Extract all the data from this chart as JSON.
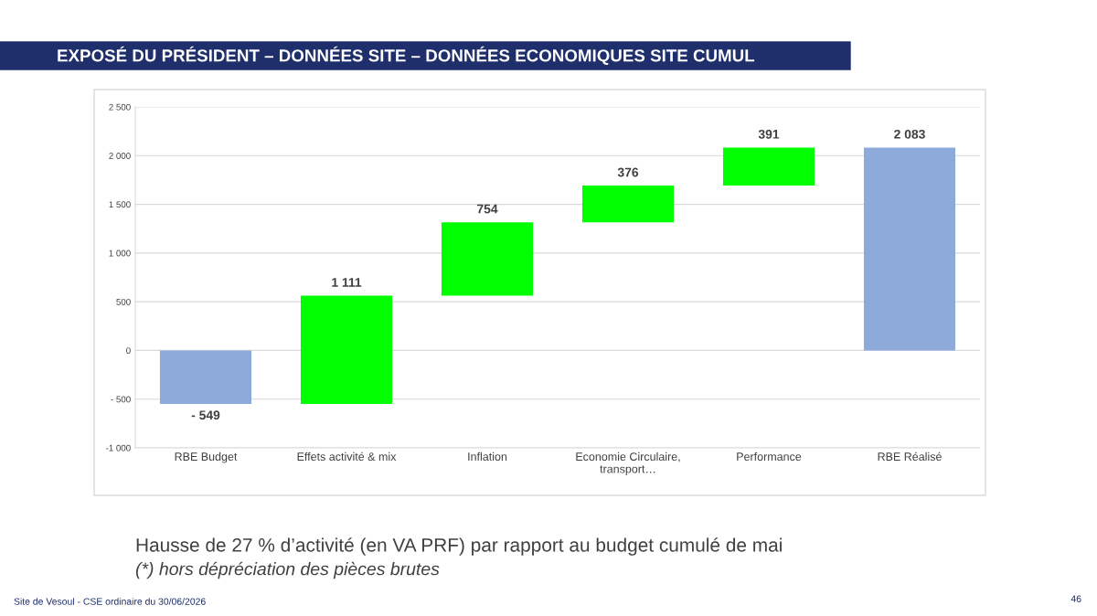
{
  "chart_data": {
    "type": "bar",
    "title": "EXPOSÉ DU PRÉSIDENT – DONNÉES SITE – DONNÉES ECONOMIQUES SITE CUMUL",
    "categories": [
      "RBE Budget",
      "Effets activité & mix",
      "Inflation",
      "Economie Circulaire,\ntransport…",
      "Performance",
      "RBE Réalisé"
    ],
    "values": [
      -549,
      1111,
      754,
      376,
      391,
      2083
    ],
    "base": [
      0,
      -549,
      562,
      1316,
      1692,
      0
    ],
    "colors": [
      "#8eaadb",
      "#00ff00",
      "#00ff00",
      "#00ff00",
      "#00ff00",
      "#8eaadb"
    ],
    "value_labels": [
      "- 549",
      "1 111",
      "754",
      "376",
      "391",
      "2 083"
    ],
    "ylim": [
      -1000,
      2500
    ],
    "yticks": [
      {
        "value": -1000,
        "label": "-1 000"
      },
      {
        "value": -500,
        "label": "- 500"
      },
      0,
      500,
      {
        "value": 1000,
        "label": "1 000"
      },
      {
        "value": 1500,
        "label": "1 500"
      },
      {
        "value": 2000,
        "label": "2 000"
      },
      {
        "value": 2500,
        "label": "2 500"
      }
    ],
    "grid": "y",
    "annotations": [
      "Hausse de 27 % d’activité (en VA PRF) par rapport au budget cumulé de mai",
      "(*) hors dépréciation des pièces brutes",
      "Site de Vesoul - CSE ordinaire du 30/06/2026",
      "46"
    ]
  }
}
